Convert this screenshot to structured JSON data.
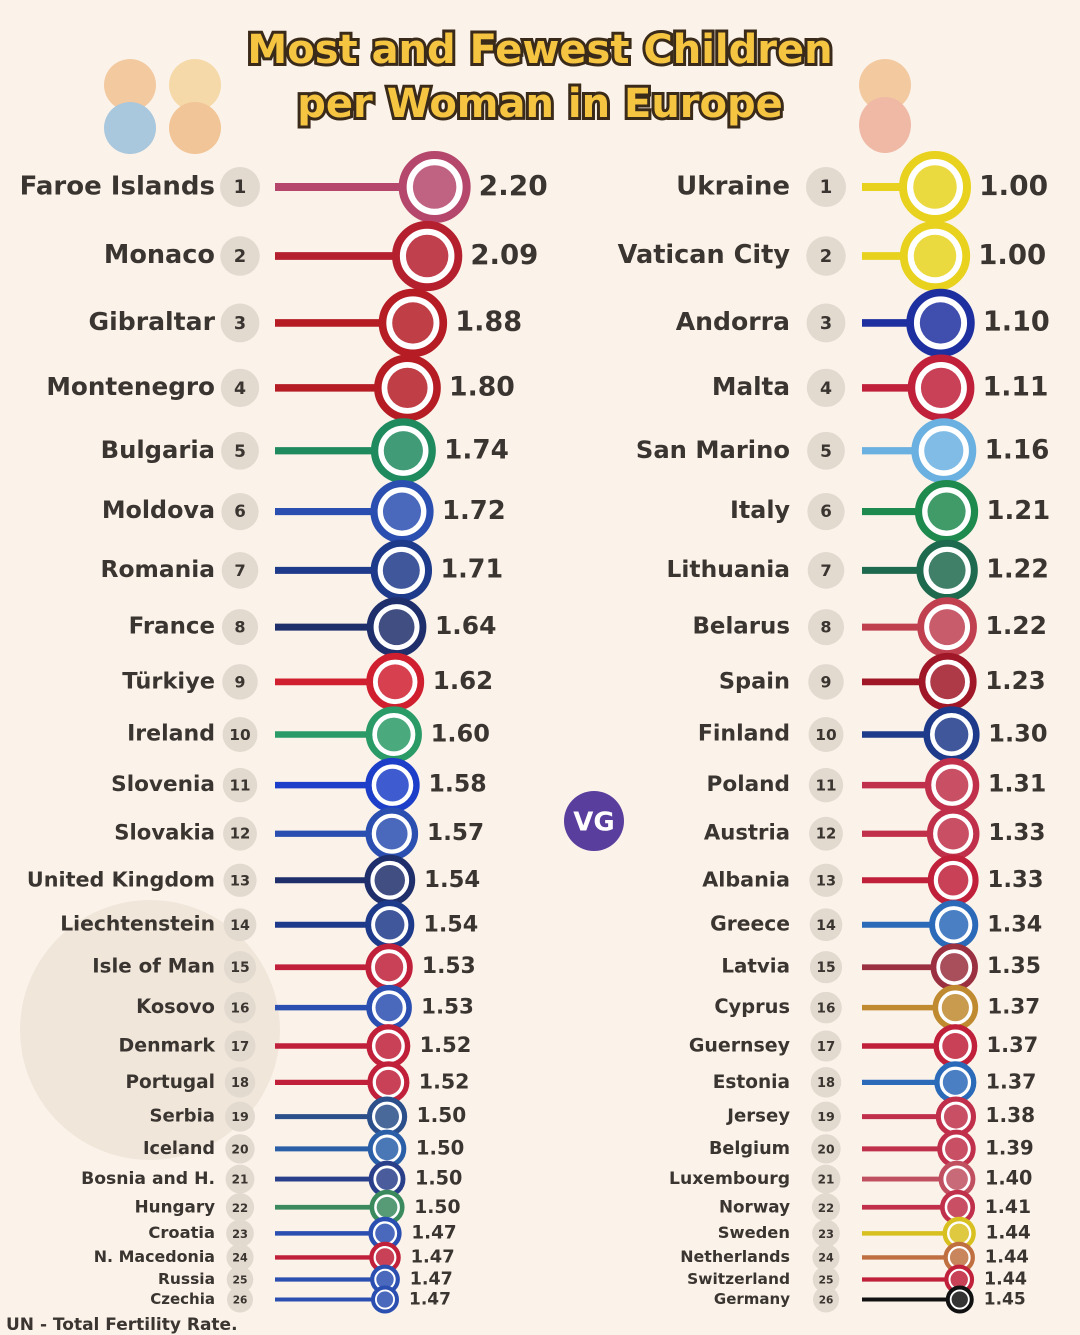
{
  "header": {
    "title": [
      "Most and Fewest Children",
      "per Woman in Europe"
    ],
    "logo": "VG",
    "source": "UN - Total Fertility Rate."
  },
  "chart_data": [
    {
      "type": "lollipop",
      "categories": [
        "Faroe Islands",
        "Monaco",
        "Gibraltar",
        "Montenegro",
        "Bulgaria",
        "Moldova",
        "Romania",
        "France",
        "Türkiye",
        "Ireland",
        "Slovenia",
        "Slovakia",
        "United Kingdom",
        "Liechtenstein",
        "Isle of Man",
        "Kosovo",
        "Denmark",
        "Portugal",
        "Serbia",
        "Iceland",
        "Bosnia and H.",
        "Hungary",
        "Croatia",
        "N. Macedonia",
        "Russia",
        "Czechia"
      ],
      "ranks": [
        1,
        2,
        3,
        4,
        5,
        6,
        7,
        8,
        9,
        10,
        11,
        12,
        13,
        14,
        15,
        16,
        17,
        18,
        19,
        20,
        21,
        22,
        23,
        24,
        25,
        26
      ],
      "values": [
        2.2,
        2.09,
        1.88,
        1.8,
        1.74,
        1.72,
        1.71,
        1.64,
        1.62,
        1.6,
        1.58,
        1.57,
        1.54,
        1.54,
        1.53,
        1.53,
        1.52,
        1.52,
        1.5,
        1.5,
        1.5,
        1.5,
        1.47,
        1.47,
        1.47,
        1.47
      ],
      "value_labels": [
        "2.20",
        "2.09",
        "1.88",
        "1.80",
        "1.74",
        "1.72",
        "1.71",
        "1.64",
        "1.62",
        "1.60",
        "1.58",
        "1.57",
        "1.54",
        "1.54",
        "1.53",
        "1.53",
        "1.52",
        "1.52",
        "1.50",
        "1.50",
        "1.50",
        "1.50",
        "1.47",
        "1.47",
        "1.47",
        "1.47"
      ],
      "colors": [
        "#b5476c",
        "#b5202e",
        "#b51c24",
        "#b51c24",
        "#1e8a5e",
        "#2a4fb0",
        "#1e3a8a",
        "#1e2f6b",
        "#d02030",
        "#2a9a66",
        "#1d3ec8",
        "#2a4fb0",
        "#1e2f6b",
        "#1e3a8a",
        "#c0203a",
        "#2a4fb0",
        "#c0203a",
        "#c0203a",
        "#2a4f8a",
        "#2a5fa8",
        "#2a3f8a",
        "#3a8a5e",
        "#2a4fb0",
        "#c0203a",
        "#2a4fb0",
        "#2a4fb0"
      ]
    },
    {
      "type": "lollipop",
      "categories": [
        "Ukraine",
        "Vatican City",
        "Andorra",
        "Malta",
        "San Marino",
        "Italy",
        "Lithuania",
        "Belarus",
        "Spain",
        "Finland",
        "Poland",
        "Austria",
        "Albania",
        "Greece",
        "Latvia",
        "Cyprus",
        "Guernsey",
        "Estonia",
        "Jersey",
        "Belgium",
        "Luxembourg",
        "Norway",
        "Sweden",
        "Netherlands",
        "Switzerland",
        "Germany"
      ],
      "ranks": [
        1,
        2,
        3,
        4,
        5,
        6,
        7,
        8,
        9,
        10,
        11,
        12,
        13,
        14,
        15,
        16,
        17,
        18,
        19,
        20,
        21,
        22,
        23,
        24,
        25,
        26
      ],
      "values": [
        1.0,
        1.0,
        1.1,
        1.11,
        1.16,
        1.21,
        1.22,
        1.22,
        1.23,
        1.3,
        1.31,
        1.33,
        1.33,
        1.34,
        1.35,
        1.37,
        1.37,
        1.37,
        1.38,
        1.39,
        1.4,
        1.41,
        1.44,
        1.44,
        1.44,
        1.45
      ],
      "value_labels": [
        "1.00",
        "1.00",
        "1.10",
        "1.11",
        "1.16",
        "1.21",
        "1.22",
        "1.22",
        "1.23",
        "1.30",
        "1.31",
        "1.33",
        "1.33",
        "1.34",
        "1.35",
        "1.37",
        "1.37",
        "1.37",
        "1.38",
        "1.39",
        "1.40",
        "1.41",
        "1.44",
        "1.44",
        "1.44",
        "1.45"
      ],
      "colors": [
        "#e8d21e",
        "#e8d21e",
        "#1e30a0",
        "#c0203a",
        "#6ab0e0",
        "#1e8a4e",
        "#1e6a4e",
        "#c04050",
        "#a01828",
        "#1e3a8a",
        "#c0304a",
        "#c0304a",
        "#c0203a",
        "#2a6ab8",
        "#9a3040",
        "#c08a30",
        "#c0203a",
        "#2a6ab8",
        "#c0304a",
        "#c0304a",
        "#c05060",
        "#c0304a",
        "#d8c020",
        "#c07040",
        "#c0203a",
        "#111111"
      ]
    }
  ]
}
